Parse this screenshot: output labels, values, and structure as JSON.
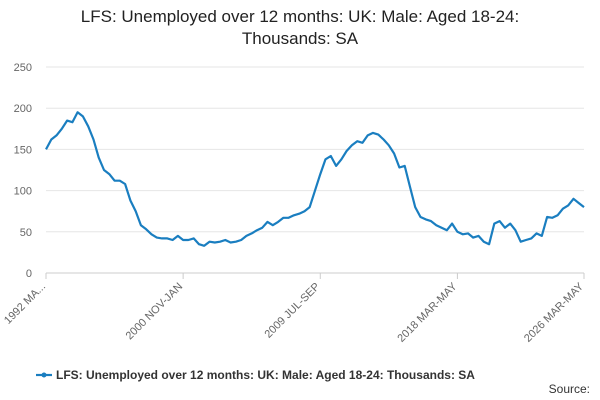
{
  "chart_data": {
    "type": "line",
    "title": "LFS: Unemployed over 12 months: UK: Male: Aged 18-24: Thousands: SA",
    "source": "Source:",
    "categories": [
      "1992 MA...",
      null,
      null,
      null,
      null,
      null,
      null,
      null,
      null,
      null,
      null,
      null,
      null,
      null,
      null,
      null,
      null,
      null,
      null,
      null,
      null,
      null,
      null,
      null,
      null,
      null,
      "2000 NOV-JAN",
      null,
      null,
      null,
      null,
      null,
      null,
      null,
      null,
      null,
      null,
      null,
      null,
      null,
      null,
      null,
      null,
      null,
      null,
      null,
      null,
      null,
      null,
      null,
      null,
      null,
      "2009 JUL-SEP",
      null,
      null,
      null,
      null,
      null,
      null,
      null,
      null,
      null,
      null,
      null,
      null,
      null,
      null,
      null,
      null,
      null,
      null,
      null,
      null,
      null,
      null,
      null,
      null,
      null,
      "2018 MAR-MAY",
      null,
      null,
      null,
      null,
      null,
      null,
      null,
      null,
      null,
      null,
      null,
      null,
      null,
      null,
      null,
      null,
      null,
      null,
      null,
      null,
      null,
      null,
      null,
      "2026 MAR-MAY"
    ],
    "series": [
      {
        "name": "LFS: Unemployed over 12 months: UK: Male: Aged 18-24: Thousands: SA",
        "color": "#1a7ec0",
        "values": [
          150,
          162,
          167,
          175,
          185,
          183,
          195,
          190,
          178,
          162,
          140,
          125,
          120,
          112,
          112,
          108,
          88,
          75,
          58,
          53,
          47,
          43,
          42,
          42,
          40,
          45,
          40,
          40,
          42,
          35,
          33,
          38,
          37,
          38,
          40,
          37,
          38,
          40,
          45,
          48,
          52,
          55,
          62,
          58,
          62,
          67,
          67,
          70,
          72,
          75,
          80,
          100,
          120,
          138,
          142,
          130,
          138,
          148,
          155,
          160,
          158,
          167,
          170,
          168,
          162,
          155,
          145,
          128,
          130,
          105,
          80,
          68,
          65,
          63,
          58,
          55,
          52,
          60,
          50,
          47,
          48,
          43,
          45,
          38,
          35,
          60,
          63,
          55,
          60,
          52,
          38,
          40,
          42,
          48,
          45,
          68,
          67,
          70,
          78,
          82,
          90,
          85,
          80
        ]
      }
    ],
    "ylim": [
      0,
      250
    ],
    "yticks": [
      0,
      50,
      100,
      150,
      200,
      250
    ],
    "grid": true,
    "legend": "bottom"
  }
}
